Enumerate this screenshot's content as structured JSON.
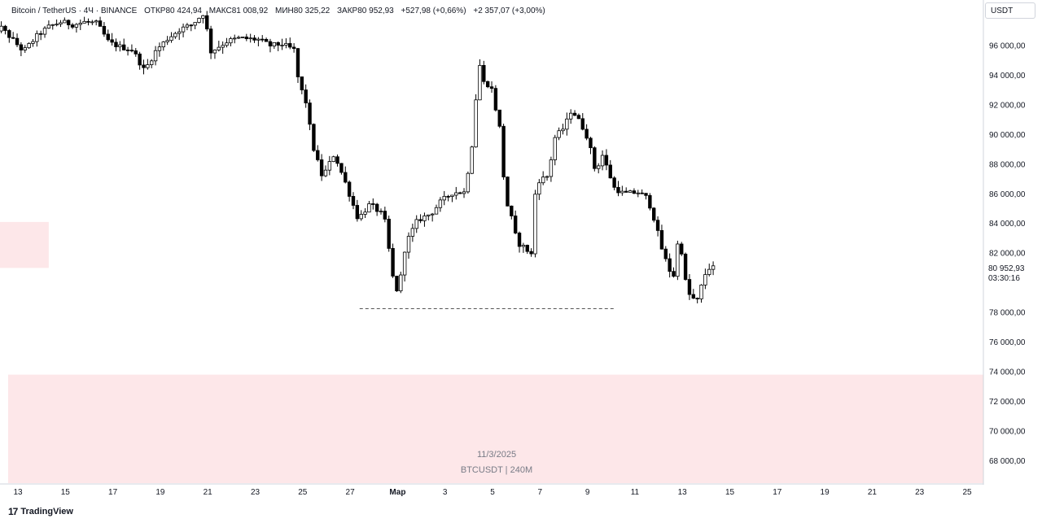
{
  "header": {
    "symbol": "Bitcoin / TetherUS · 4Ч · BINANCE",
    "open_label": "ОТКР",
    "open": "80 424,94",
    "high_label": "МАКС",
    "high": "81 008,92",
    "low_label": "МИН",
    "low": "80 325,22",
    "close_label": "ЗАКР",
    "close": "80 952,93",
    "change": "+527,98 (+0,66%)",
    "change2": "+2 357,07 (+3,00%)"
  },
  "currency": "USDT",
  "last_price": {
    "price": "80 952,93",
    "countdown": "03:30:16"
  },
  "watermark": {
    "date": "11/3/2025",
    "info": "BTCUSDT | 240M"
  },
  "footer": {
    "logo": "17",
    "brand": "TradingView"
  },
  "colors": {
    "zone": "#fde7e9",
    "candle": "#000000",
    "grid": "#ffffff",
    "line": "#131722"
  },
  "chart_data": {
    "type": "candlestick",
    "y_ticks": [
      "96 000,00",
      "94 000,00",
      "92 000,00",
      "90 000,00",
      "88 000,00",
      "86 000,00",
      "84 000,00",
      "82 000,00",
      "80 000,00",
      "78 000,00",
      "76 000,00",
      "74 000,00",
      "72 000,00",
      "70 000,00",
      "68 000,00"
    ],
    "y_tick_values": [
      96000,
      94000,
      92000,
      90000,
      88000,
      86000,
      84000,
      82000,
      80000,
      78000,
      76000,
      74000,
      72000,
      70000,
      68000
    ],
    "x_ticks": [
      "13",
      "15",
      "17",
      "19",
      "21",
      "23",
      "25",
      "27",
      "Мар",
      "3",
      "5",
      "7",
      "9",
      "11",
      "13",
      "15",
      "17",
      "19",
      "21",
      "23",
      "25"
    ],
    "ylim": [
      66500,
      97500
    ],
    "zones": [
      {
        "from_day": 10.7,
        "to_day": 14.3,
        "low": 81000,
        "high": 84100
      },
      {
        "from_day": 11.8,
        "to_day": 38.8,
        "low": 66500,
        "high": 73800
      }
    ],
    "dashed_level": {
      "price": 78250,
      "from_day": 27.4,
      "to_day": 38.2
    },
    "anchors": [
      [
        12.0,
        96500
      ],
      [
        12.4,
        97300
      ],
      [
        13.0,
        96300
      ],
      [
        13.4,
        95600
      ],
      [
        14.0,
        96700
      ],
      [
        14.5,
        97300
      ],
      [
        15.0,
        97600
      ],
      [
        15.5,
        97400
      ],
      [
        16.0,
        97600
      ],
      [
        16.5,
        97500
      ],
      [
        17.0,
        96200
      ],
      [
        17.5,
        95900
      ],
      [
        18.0,
        95700
      ],
      [
        18.5,
        94300
      ],
      [
        19.0,
        95700
      ],
      [
        19.5,
        96500
      ],
      [
        20.0,
        97100
      ],
      [
        20.5,
        97400
      ],
      [
        21.0,
        98200
      ],
      [
        21.3,
        95600
      ],
      [
        22.0,
        96300
      ],
      [
        22.5,
        96500
      ],
      [
        23.3,
        96400
      ],
      [
        23.8,
        96000
      ],
      [
        24.3,
        96100
      ],
      [
        24.8,
        95700
      ],
      [
        25.0,
        93500
      ],
      [
        25.3,
        92200
      ],
      [
        25.6,
        89200
      ],
      [
        26.0,
        87100
      ],
      [
        26.5,
        88700
      ],
      [
        27.0,
        86600
      ],
      [
        27.5,
        84300
      ],
      [
        28.0,
        85300
      ],
      [
        28.6,
        84500
      ],
      [
        29.0,
        80000
      ],
      [
        29.2,
        79300
      ],
      [
        29.5,
        82600
      ],
      [
        30.0,
        84200
      ],
      [
        30.6,
        84700
      ],
      [
        31.0,
        85500
      ],
      [
        31.5,
        86100
      ],
      [
        32.0,
        86100
      ],
      [
        32.3,
        89300
      ],
      [
        32.6,
        94900
      ],
      [
        32.8,
        93500
      ],
      [
        33.1,
        93300
      ],
      [
        33.5,
        90200
      ],
      [
        33.7,
        85700
      ],
      [
        34.0,
        84200
      ],
      [
        34.2,
        82700
      ],
      [
        34.5,
        82400
      ],
      [
        34.8,
        81900
      ],
      [
        35.0,
        86800
      ],
      [
        35.5,
        87200
      ],
      [
        35.8,
        89800
      ],
      [
        36.2,
        90500
      ],
      [
        36.5,
        91700
      ],
      [
        36.9,
        90700
      ],
      [
        37.2,
        89700
      ],
      [
        37.5,
        87500
      ],
      [
        37.8,
        88600
      ],
      [
        38.3,
        86400
      ],
      [
        38.7,
        86000
      ],
      [
        39.3,
        86100
      ],
      [
        39.7,
        85700
      ],
      [
        40.0,
        84200
      ],
      [
        40.3,
        82300
      ],
      [
        40.6,
        80900
      ],
      [
        40.9,
        80300
      ],
      [
        41.0,
        83700
      ],
      [
        41.3,
        80100
      ],
      [
        41.5,
        79000
      ],
      [
        41.8,
        78800
      ],
      [
        42.1,
        80500
      ],
      [
        42.3,
        81000
      ]
    ]
  }
}
